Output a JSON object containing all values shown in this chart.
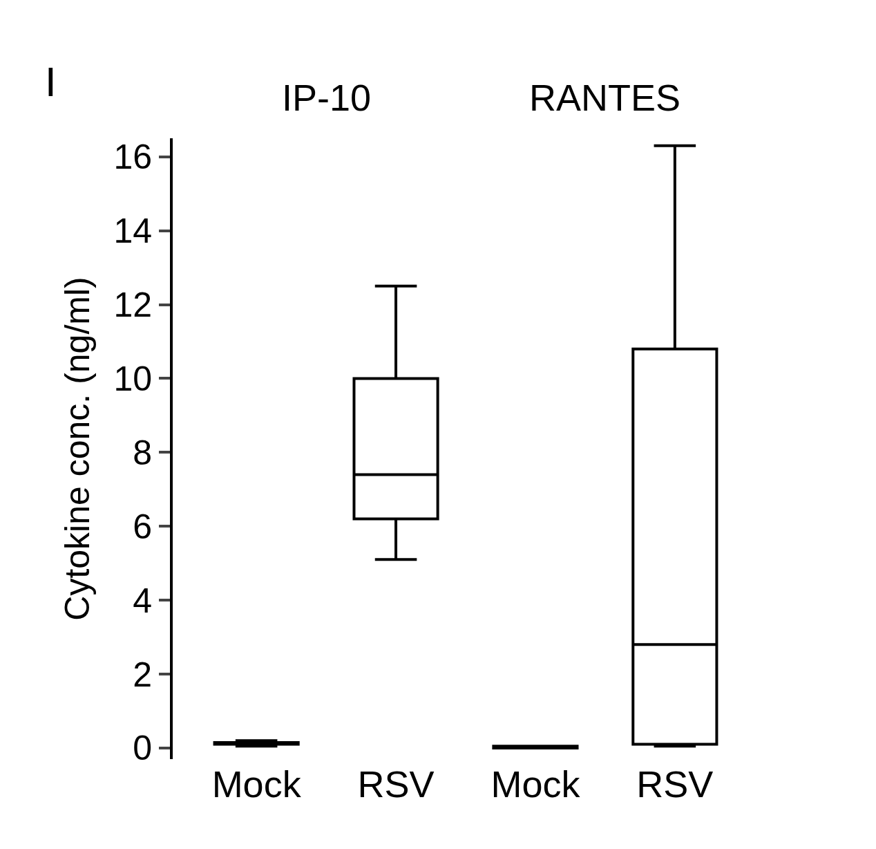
{
  "chart_data": {
    "type": "box",
    "ylabel": "Cytokine conc. (ng/ml)",
    "annotations": [
      "I",
      "IP-10",
      "RANTES"
    ],
    "categories": [
      "Mock",
      "RSV",
      "Mock",
      "RSV"
    ],
    "boxes": [
      {
        "low": 0.05,
        "q1": 0.1,
        "median": 0.1,
        "q3": 0.15,
        "high": 0.2
      },
      {
        "low": 5.1,
        "q1": 6.2,
        "median": 7.4,
        "q3": 10,
        "high": 12.5
      },
      {
        "low": 0,
        "q1": 0,
        "median": 0,
        "q3": 0.05,
        "high": 0.05
      },
      {
        "low": 0.05,
        "q1": 0.1,
        "median": 2.8,
        "q3": 10.8,
        "high": 16.3
      }
    ],
    "color": "#000000",
    "ylim": [
      -0.3,
      16.5
    ],
    "yticks": [
      0,
      2,
      4,
      6,
      8,
      10,
      12,
      14,
      16
    ],
    "grid": false
  }
}
